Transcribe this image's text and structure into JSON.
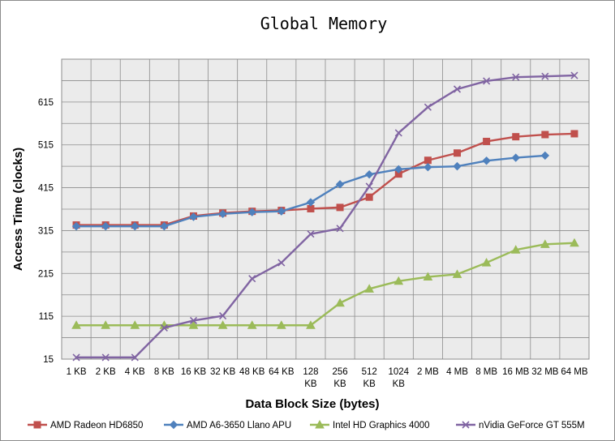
{
  "chart_data": {
    "type": "line",
    "title": "Global Memory",
    "xlabel": "Data Block Size (bytes)",
    "ylabel": "Access Time (clocks)",
    "categories": [
      "1 KB",
      "2 KB",
      "4 KB",
      "8 KB",
      "16 KB",
      "32 KB",
      "48 KB",
      "64 KB",
      "128 KB",
      "256 KB",
      "512 KB",
      "1024 KB",
      "2 MB",
      "4 MB",
      "8 MB",
      "16 MB",
      "32 MB",
      "64 MB"
    ],
    "y_ticks": [
      "15",
      "115",
      "215",
      "315",
      "415",
      "515",
      "615"
    ],
    "ylim": [
      15,
      715
    ],
    "grid": true,
    "legend_position": "bottom",
    "series": [
      {
        "name": "AMD Radeon HD6850",
        "color": "#c0504d",
        "marker": "square",
        "values": [
          328,
          328,
          328,
          328,
          349,
          356,
          360,
          362,
          366,
          369,
          393,
          447,
          479,
          496,
          523,
          534,
          539,
          541
        ]
      },
      {
        "name": "AMD A6-3650 Llano APU",
        "color": "#4f81bd",
        "marker": "diamond",
        "values": [
          325,
          325,
          325,
          325,
          347,
          354,
          358,
          360,
          381,
          423,
          446,
          458,
          463,
          465,
          478,
          485,
          490,
          null
        ]
      },
      {
        "name": "Intel HD Graphics 4000",
        "color": "#9bbb59",
        "marker": "triangle",
        "values": [
          94,
          94,
          94,
          94,
          94,
          94,
          94,
          94,
          94,
          146,
          179,
          197,
          207,
          213,
          240,
          270,
          283,
          286
        ]
      },
      {
        "name": "nVidia GeForce GT 555M",
        "color": "#8064a2",
        "marker": "x",
        "values": [
          19,
          19,
          19,
          88,
          105,
          116,
          203,
          240,
          307,
          320,
          418,
          543,
          603,
          645,
          664,
          673,
          675,
          677
        ]
      }
    ]
  }
}
